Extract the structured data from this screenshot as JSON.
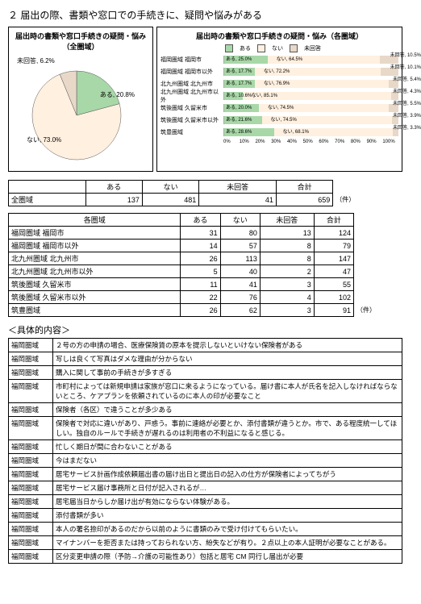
{
  "section_title": "２ 届出の際、書類や窓口での手続きに、疑問や悩みがある",
  "pie": {
    "title": "届出時の書類や窓口手続きの疑問・悩み（全圏域）",
    "labels": {
      "aru": "ある,\n20.8%",
      "nai": "ない,\n73.0%",
      "mik": "未回答,\n6.2%"
    },
    "colors": {
      "aru": "#a8d8a8",
      "nai": "#fff0e0",
      "mik": "#e8d8c8"
    }
  },
  "bars": {
    "title": "届出時の書類や窓口手続きの疑問・悩み（各圏域）",
    "legend": [
      "ある",
      "ない",
      "未回答"
    ],
    "rows": [
      {
        "label": "福岡圏域 福岡市",
        "aru": 25.0,
        "nai": 64.5,
        "mik": 10.5
      },
      {
        "label": "福岡圏域 福岡市以外",
        "aru": 17.7,
        "nai": 72.2,
        "mik": 10.1
      },
      {
        "label": "北九州圏域 北九州市",
        "aru": 17.7,
        "nai": 76.9,
        "mik": 5.4
      },
      {
        "label": "北九州圏域 北九州市以外",
        "aru": 10.6,
        "nai": 85.1,
        "mik": 4.3
      },
      {
        "label": "筑後圏域 久留米市",
        "aru": 20.0,
        "nai": 74.5,
        "mik": 5.5
      },
      {
        "label": "筑後圏域 久留米市以外",
        "aru": 21.6,
        "nai": 74.5,
        "mik": 3.9
      },
      {
        "label": "筑豊圏域",
        "aru": 28.6,
        "nai": 68.1,
        "mik": 3.3
      }
    ],
    "axis": [
      "0%",
      "10%",
      "20%",
      "30%",
      "40%",
      "50%",
      "60%",
      "70%",
      "80%",
      "90%",
      "100%"
    ]
  },
  "summary": {
    "headers": [
      "",
      "ある",
      "ない",
      "未回答",
      "合計"
    ],
    "row_label": "全圏域",
    "values": [
      137,
      481,
      41,
      659
    ],
    "unit": "（件）"
  },
  "by_area": {
    "headers": [
      "各圏域",
      "ある",
      "ない",
      "未回答",
      "合計"
    ],
    "rows": [
      [
        "福岡圏域 福岡市",
        31,
        80,
        13,
        124
      ],
      [
        "福岡圏域 福岡市以外",
        14,
        57,
        8,
        79
      ],
      [
        "北九州圏域 北九州市",
        26,
        113,
        8,
        147
      ],
      [
        "北九州圏域 北九州市以外",
        5,
        40,
        2,
        47
      ],
      [
        "筑後圏域 久留米市",
        11,
        41,
        3,
        55
      ],
      [
        "筑後圏域 久留米市以外",
        22,
        76,
        4,
        102
      ],
      [
        "筑豊圏域",
        26,
        62,
        3,
        91
      ]
    ],
    "unit": "（件）"
  },
  "detail_head": "＜具体的内容＞",
  "details": [
    [
      "福岡圏域",
      "２号の方の申請の場合、医療保険賃の原本を提示しないといけない保険者がある"
    ],
    [
      "福岡圏域",
      "写しは良くて写真はダメな理由が分からない"
    ],
    [
      "福岡圏域",
      "購入に関して事前の手続きが多すぎる"
    ],
    [
      "福岡圏域",
      "市町村によっては新規申請は家族が窓口に来るようになっている。届け書に本人が氏名を記入しなければならないところ、ケアプランを依頼されているのに本人の印が必要なこと"
    ],
    [
      "福岡圏域",
      "保険者（各区）で違うことが多少ある"
    ],
    [
      "福岡圏域",
      "保険者で対応に違いがあり、戸惑う。事前に連絡が必要とか、添付書類が違うとか。市で、ある程度統一してほしい。独自のルールで手続きが遅れるのは利用者の不利益になると感じる。"
    ],
    [
      "福岡圏域",
      "忙しく期日が間に合わないことがある"
    ],
    [
      "福岡圏域",
      "今はまだない"
    ],
    [
      "福岡圏域",
      "居宅サービス計画作成依頼届出書の届け出日と提出日の記入の仕方が保険者によってちがう"
    ],
    [
      "福岡圏域",
      "居宅サービス届け事務所と日付が記入されるが…"
    ],
    [
      "福岡圏域",
      "居宅届当日からしか届け出が有効にならない体験がある。"
    ],
    [
      "福岡圏域",
      "添付書類が多い"
    ],
    [
      "福岡圏域",
      "本人の署名捺印があるのだから以前のように書類のみで受け付けてもらいたい。"
    ],
    [
      "福岡圏域",
      "マイナンバーを拒否または持っておられない方、紛失などが有り。２点以上の本人証明が必要なことがある。"
    ],
    [
      "福岡圏域",
      "区分変更申請の際（予防→介護の可能性あり）包括と居宅 CM 同行し届出が必要"
    ]
  ]
}
